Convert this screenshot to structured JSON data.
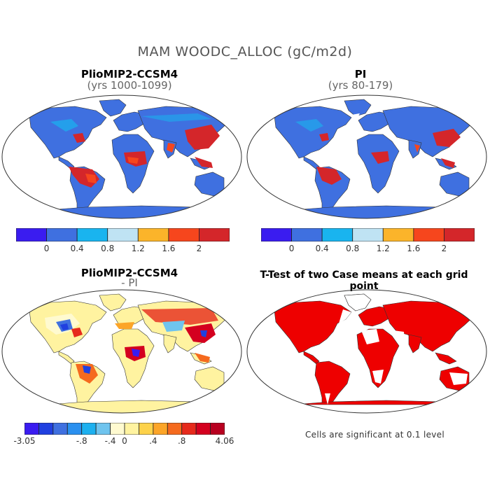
{
  "figure_title": "MAM WOODC_ALLOC (gC/m2d)",
  "panels": [
    {
      "title": "PlioMIP2-CCSM4",
      "subtitle": "(yrs 1000-1099)"
    },
    {
      "title": "PI",
      "subtitle": "(yrs 80-179)"
    },
    {
      "title": "PlioMIP2-CCSM4",
      "subtitle": "- PI"
    },
    {
      "title": "T-Test of two Case means at each grid point",
      "subtitle": ""
    }
  ],
  "colorbar_top": {
    "colors": [
      "#3a1cf0",
      "#3f70e0",
      "#19b4ef",
      "#bfe3f3",
      "#fbb42a",
      "#f6461d",
      "#d4262a"
    ],
    "labels": [
      "0",
      "0.4",
      "0.8",
      "1.2",
      "1.6",
      "2"
    ]
  },
  "colorbar_diff": {
    "colors": [
      "#3a1cf0",
      "#2040e0",
      "#3f70e0",
      "#2a90ef",
      "#1db0ef",
      "#6fc4ee",
      "#fffad0",
      "#fff3a0",
      "#fdd24a",
      "#fca528",
      "#f56a1e",
      "#e62a1c",
      "#d4001f",
      "#b80020"
    ],
    "labels": [
      "-3.05",
      "-.8",
      "-.4",
      "0",
      ".4",
      ".8",
      "4.06"
    ]
  },
  "significance_note": "Cells are significant at 0.1 level",
  "colors": {
    "land_base": "#3f70e0",
    "land_diff_base": "#fff3a0",
    "significant": "#ee0000",
    "coast": "#333333"
  }
}
